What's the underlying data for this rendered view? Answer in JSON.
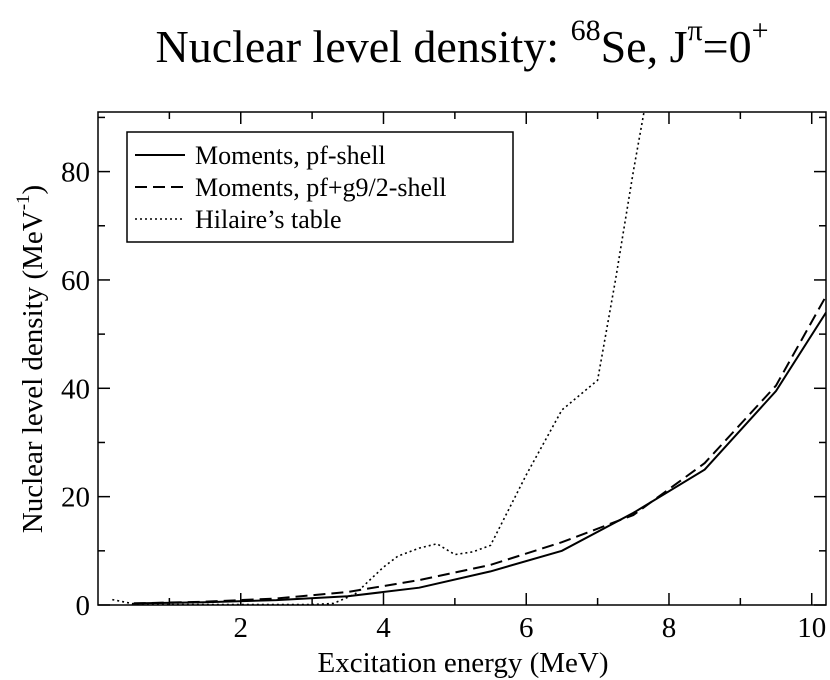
{
  "chart_data": {
    "type": "line",
    "title": "Nuclear level density: ",
    "title_super_1": "68",
    "title_mid": "Se, J",
    "title_super_2": "π",
    "title_end": "=0",
    "title_super_3": "+",
    "xlabel": "Excitation energy (MeV)",
    "ylabel_main": "Nuclear level density (MeV",
    "ylabel_super": "-1",
    "ylabel_close": ")",
    "xlim": [
      0,
      10.2
    ],
    "ylim": [
      0,
      91
    ],
    "xticks": [
      2,
      4,
      6,
      8,
      10
    ],
    "yticks": [
      0,
      20,
      40,
      60,
      80
    ],
    "legend_position": "top-left",
    "series": [
      {
        "name": "Moments, pf-shell",
        "style": "solid",
        "x": [
          0.5,
          1.5,
          2.5,
          3.5,
          4.5,
          5.5,
          6.5,
          7.5,
          8.5,
          9.5,
          10.2
        ],
        "y": [
          0.3,
          0.5,
          0.9,
          1.6,
          3.2,
          6.2,
          10.0,
          17.0,
          25.0,
          39.5,
          54.0
        ]
      },
      {
        "name": "Moments, pf+g9/2-shell",
        "style": "dashed",
        "x": [
          0.5,
          1.5,
          2.5,
          3.5,
          4.5,
          5.5,
          6.5,
          7.5,
          8.5,
          9.5,
          10.2
        ],
        "y": [
          0.3,
          0.6,
          1.2,
          2.4,
          4.6,
          7.4,
          11.6,
          16.6,
          26.2,
          40.5,
          57.0
        ]
      },
      {
        "name": "Hilaire’s table",
        "style": "dotted",
        "x": [
          0.2,
          0.5,
          1.0,
          1.5,
          2.0,
          2.5,
          3.0,
          3.3,
          3.6,
          3.8,
          4.0,
          4.2,
          4.5,
          4.75,
          5.0,
          5.25,
          5.5,
          6.0,
          6.5,
          7.0,
          7.25,
          7.5,
          7.65
        ],
        "y": [
          1.0,
          0.2,
          0.1,
          0.1,
          0.1,
          0.1,
          0.1,
          0.3,
          2.0,
          4.5,
          7.0,
          9.0,
          10.5,
          11.3,
          9.3,
          9.8,
          11.0,
          24.0,
          36.0,
          41.5,
          60.0,
          80.0,
          91.0
        ]
      }
    ]
  }
}
